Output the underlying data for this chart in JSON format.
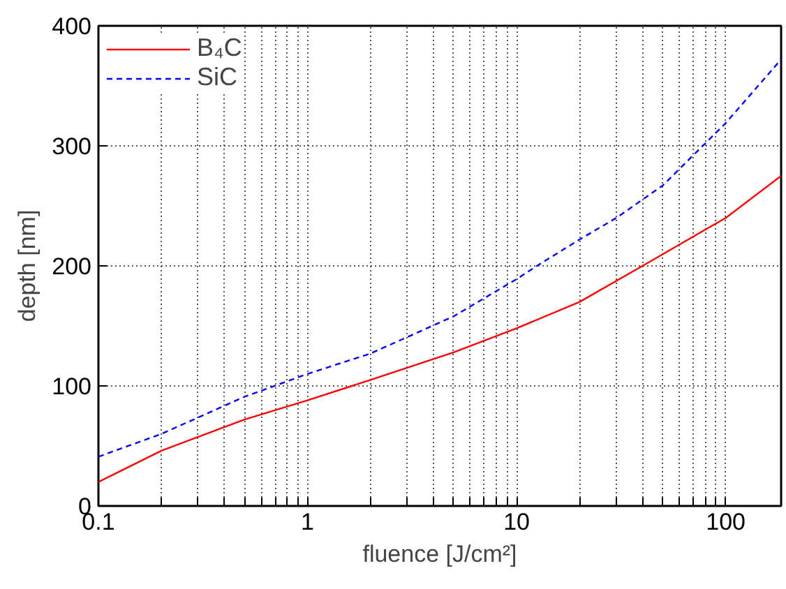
{
  "chart_data": {
    "type": "line",
    "xlabel": "fluence [J/cm²]",
    "ylabel": "depth [nm]",
    "log": "x",
    "xlim": [
      0.1,
      184
    ],
    "ylim": [
      0,
      400
    ],
    "xticks": [
      0.1,
      {
        "value": 0.2,
        "label": null
      },
      {
        "value": 0.3,
        "label": null
      },
      {
        "value": 0.4,
        "label": null
      },
      {
        "value": 0.5,
        "label": null
      },
      {
        "value": 0.6,
        "label": null
      },
      {
        "value": 0.7,
        "label": null
      },
      {
        "value": 0.8,
        "label": null
      },
      {
        "value": 0.9,
        "label": null
      },
      1,
      {
        "value": 2,
        "label": null
      },
      {
        "value": 3,
        "label": null
      },
      {
        "value": 4,
        "label": null
      },
      {
        "value": 5,
        "label": null
      },
      {
        "value": 6,
        "label": null
      },
      {
        "value": 7,
        "label": null
      },
      {
        "value": 8,
        "label": null
      },
      {
        "value": 9,
        "label": null
      },
      10,
      {
        "value": 20,
        "label": null
      },
      {
        "value": 30,
        "label": null
      },
      {
        "value": 40,
        "label": null
      },
      {
        "value": 50,
        "label": null
      },
      {
        "value": 60,
        "label": null
      },
      {
        "value": 70,
        "label": null
      },
      {
        "value": 80,
        "label": null
      },
      {
        "value": 90,
        "label": null
      },
      100
    ],
    "yticks": [
      0,
      100,
      200,
      300,
      400
    ],
    "grid": true,
    "legend": "top left",
    "series": [
      {
        "name": "B₄C",
        "color": "#ff0000",
        "line_style": "solid",
        "x": [
          0.1,
          0.2,
          0.5,
          1,
          2,
          5,
          10,
          20,
          40,
          100,
          184
        ],
        "values": [
          20,
          46,
          72,
          88,
          105,
          128,
          148,
          170,
          200,
          240,
          275
        ]
      },
      {
        "name": "SiC",
        "color": "#0000ff",
        "line_style": "dashed",
        "x": [
          0.1,
          0.2,
          0.5,
          1,
          2,
          5,
          10,
          12.5,
          20,
          30,
          50,
          100,
          184
        ],
        "values": [
          41,
          60,
          91,
          110,
          127,
          158,
          189,
          200,
          222,
          240,
          267,
          319,
          372
        ]
      }
    ]
  }
}
